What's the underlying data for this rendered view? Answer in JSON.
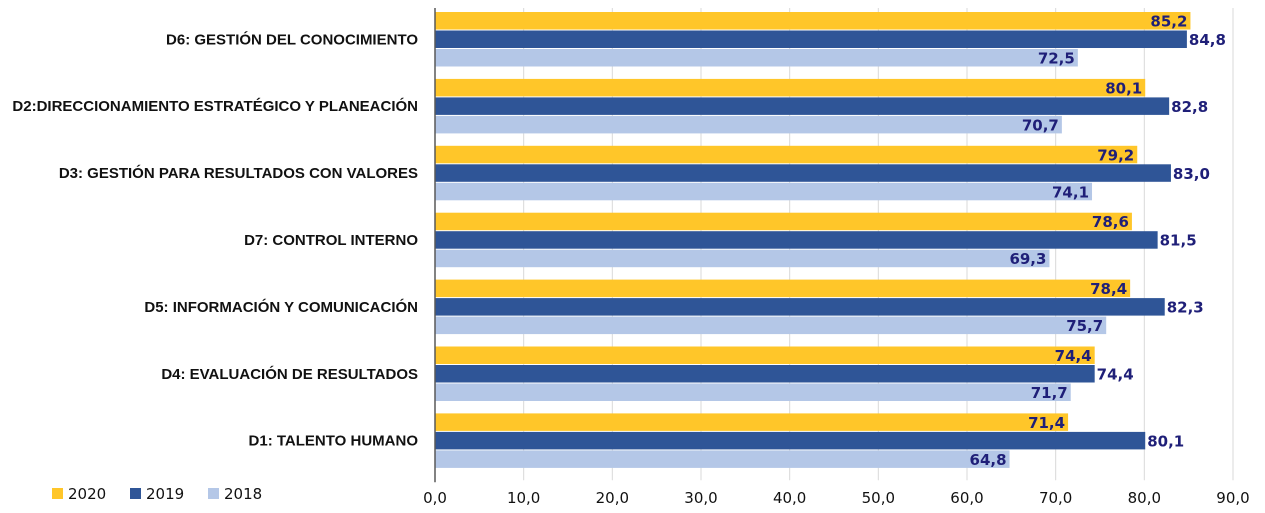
{
  "chart_data": {
    "type": "bar",
    "orientation": "horizontal",
    "categories": [
      "D6: GESTIÓN DEL CONOCIMIENTO",
      "D2:DIRECCIONAMIENTO ESTRATÉGICO Y PLANEACIÓN",
      "D3: GESTIÓN PARA RESULTADOS CON VALORES",
      "D7: CONTROL INTERNO",
      "D5: INFORMACIÓN Y COMUNICACIÓN",
      "D4: EVALUACIÓN DE RESULTADOS",
      "D1: TALENTO HUMANO"
    ],
    "series": [
      {
        "name": "2020",
        "color": "#FFC629",
        "values": [
          85.2,
          80.1,
          79.2,
          78.6,
          78.4,
          74.4,
          71.4
        ],
        "labels": [
          "85,2",
          "80,1",
          "79,2",
          "78,6",
          "78,4",
          "74,4",
          "71,4"
        ]
      },
      {
        "name": "2019",
        "color": "#2F5597",
        "values": [
          84.8,
          82.8,
          83.0,
          81.5,
          82.3,
          74.4,
          80.1
        ],
        "labels": [
          "84,8",
          "82,8",
          "83,0",
          "81,5",
          "82,3",
          "74,4",
          "80,1"
        ]
      },
      {
        "name": "2018",
        "color": "#B4C7E7",
        "values": [
          72.5,
          70.7,
          74.1,
          69.3,
          75.7,
          71.7,
          64.8
        ],
        "labels": [
          "72,5",
          "70,7",
          "74,1",
          "69,3",
          "75,7",
          "71,7",
          "64,8"
        ]
      }
    ],
    "xlim": [
      0,
      90
    ],
    "xticks": [
      0,
      10,
      20,
      30,
      40,
      50,
      60,
      70,
      80,
      90
    ],
    "xtick_labels": [
      "0,0",
      "10,0",
      "20,0",
      "30,0",
      "40,0",
      "50,0",
      "60,0",
      "70,0",
      "80,0",
      "90,0"
    ],
    "label_color": "#1F1F78",
    "grid": true,
    "grid_color": "#D9D9D9",
    "axis_color": "#595959",
    "legend": {
      "position": "bottom-left",
      "entries": [
        "2020",
        "2019",
        "2018"
      ]
    }
  }
}
